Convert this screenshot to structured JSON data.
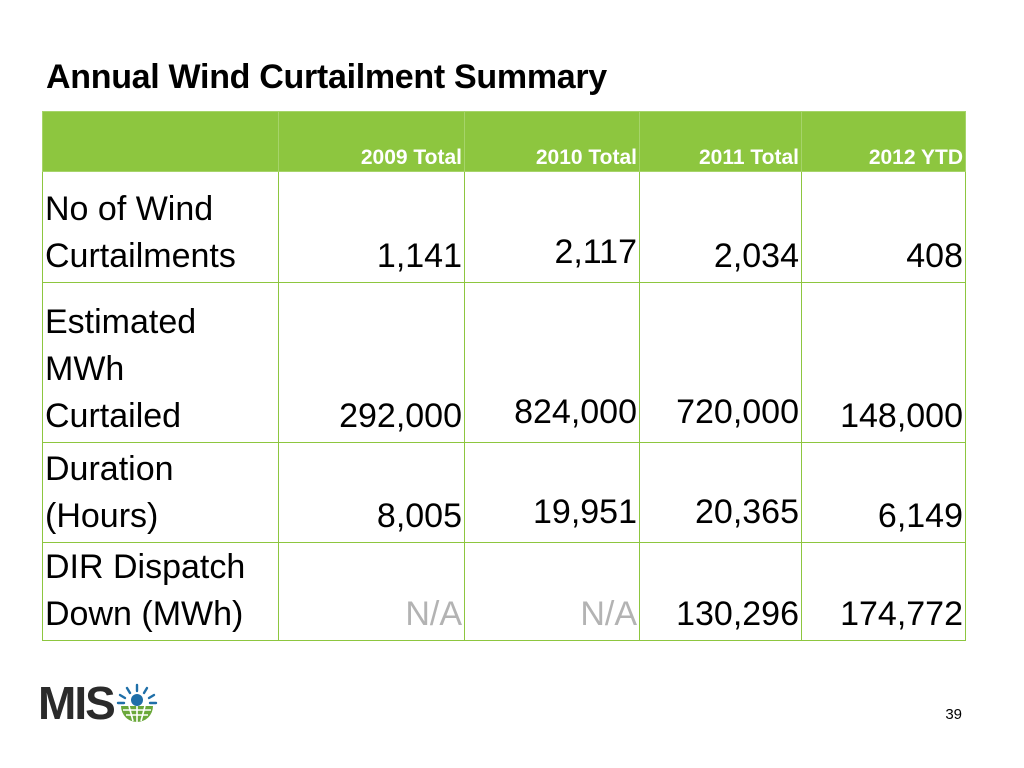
{
  "slide": {
    "title": "Annual Wind Curtailment Summary",
    "page_number": "39"
  },
  "table": {
    "headers": [
      "",
      "2009 Total",
      "2010 Total",
      "2011 Total",
      "2012 YTD"
    ],
    "rows": [
      {
        "label_lines": [
          "No of Wind",
          "Curtailments"
        ],
        "values": [
          "1,141",
          "2,117",
          "2,034",
          "408"
        ]
      },
      {
        "label_lines": [
          "Estimated",
          "MWh",
          "Curtailed"
        ],
        "values": [
          "292,000",
          "824,000",
          "720,000",
          "148,000"
        ]
      },
      {
        "label_lines": [
          "Duration",
          "(Hours)"
        ],
        "values": [
          "8,005",
          "19,951",
          "20,365",
          "6,149"
        ]
      },
      {
        "label_lines": [
          "DIR Dispatch",
          "Down (MWh)"
        ],
        "values": [
          "N/A",
          "N/A",
          "130,296",
          "174,772"
        ]
      }
    ]
  },
  "logo": {
    "text": "MIS",
    "icon": "miso-globe-icon"
  },
  "colors": {
    "header_green": "#8dc63f",
    "na_gray": "#b3b3b3",
    "logo_blue": "#1f6fa8",
    "logo_green": "#6aa83a"
  }
}
